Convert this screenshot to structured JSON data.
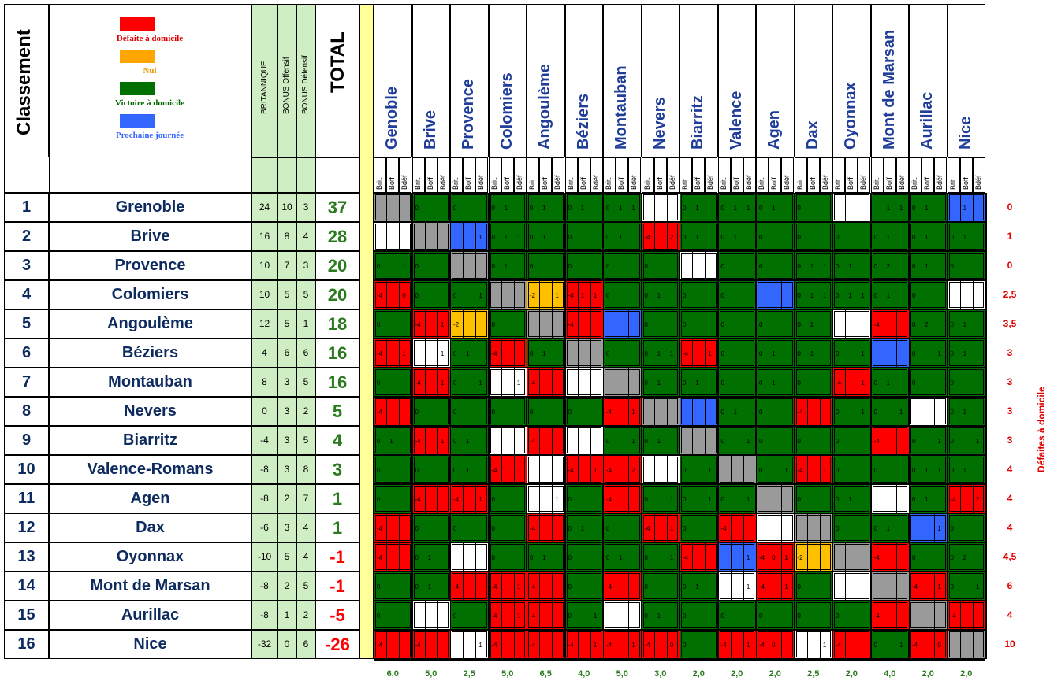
{
  "header": {
    "classement": "Classement",
    "legend": [
      {
        "label": "Défaite à domicile",
        "color": "#ff0000",
        "text_color": "#e00000"
      },
      {
        "label": "Nul",
        "color": "#ffa500",
        "text_color": "#e69500"
      },
      {
        "label": "Victoire à domicile",
        "color": "#007000",
        "text_color": "#006a00"
      },
      {
        "label": "Prochaine journée",
        "color": "#3366ff",
        "text_color": "#3366ff"
      }
    ],
    "col_britannique": "BRITANNIQUE",
    "col_bonus_off": "BONUS Offensif",
    "col_bonus_def": "BONUS Défensif",
    "col_total": "TOTAL",
    "sub_headers": [
      "Brit.",
      "Boff",
      "Bdéf"
    ],
    "side_label": "Défaites à domicile"
  },
  "colors": {
    "R": "#ff0000",
    "G": "#007000",
    "W": "#ffffff",
    "S": "#9a9a9a",
    "B": "#3366ff",
    "O": "#ffc000"
  },
  "teams": [
    {
      "rank": "1",
      "name": "Grenoble",
      "brit": "24",
      "boff": "10",
      "bdef": "3",
      "total": "37",
      "home_def": "0",
      "avg": "6,0",
      "col_name": "Genoble"
    },
    {
      "rank": "2",
      "name": "Brive",
      "brit": "16",
      "boff": "8",
      "bdef": "4",
      "total": "28",
      "home_def": "1",
      "avg": "5,0",
      "col_name": "Brive"
    },
    {
      "rank": "3",
      "name": "Provence",
      "brit": "10",
      "boff": "7",
      "bdef": "3",
      "total": "20",
      "home_def": "0",
      "avg": "2,5",
      "col_name": "Provence"
    },
    {
      "rank": "4",
      "name": "Colomiers",
      "brit": "10",
      "boff": "5",
      "bdef": "5",
      "total": "20",
      "home_def": "2,5",
      "avg": "5,0",
      "col_name": "Colomiers"
    },
    {
      "rank": "5",
      "name": "Angoulème",
      "brit": "12",
      "boff": "5",
      "bdef": "1",
      "total": "18",
      "home_def": "3,5",
      "avg": "6,5",
      "col_name": "Angoulème"
    },
    {
      "rank": "6",
      "name": "Béziers",
      "brit": "4",
      "boff": "6",
      "bdef": "6",
      "total": "16",
      "home_def": "3",
      "avg": "4,0",
      "col_name": "Béziers"
    },
    {
      "rank": "7",
      "name": "Montauban",
      "brit": "8",
      "boff": "3",
      "bdef": "5",
      "total": "16",
      "home_def": "3",
      "avg": "5,0",
      "col_name": "Montauban"
    },
    {
      "rank": "8",
      "name": "Nevers",
      "brit": "0",
      "boff": "3",
      "bdef": "2",
      "total": "5",
      "home_def": "3",
      "avg": "3,0",
      "col_name": "Nevers"
    },
    {
      "rank": "9",
      "name": "Biarritz",
      "brit": "-4",
      "boff": "3",
      "bdef": "5",
      "total": "4",
      "home_def": "3",
      "avg": "2,0",
      "col_name": "Biarritz"
    },
    {
      "rank": "10",
      "name": "Valence-Romans",
      "brit": "-8",
      "boff": "3",
      "bdef": "8",
      "total": "3",
      "home_def": "4",
      "avg": "2,0",
      "col_name": "Valence"
    },
    {
      "rank": "11",
      "name": "Agen",
      "brit": "-8",
      "boff": "2",
      "bdef": "7",
      "total": "1",
      "home_def": "4",
      "avg": "2,0",
      "col_name": "Agen"
    },
    {
      "rank": "12",
      "name": "Dax",
      "brit": "-6",
      "boff": "3",
      "bdef": "4",
      "total": "1",
      "home_def": "4",
      "avg": "2,5",
      "col_name": "Dax"
    },
    {
      "rank": "13",
      "name": "Oyonnax",
      "brit": "-10",
      "boff": "5",
      "bdef": "4",
      "total": "-1",
      "home_def": "4,5",
      "avg": "2,0",
      "col_name": "Oyonnax"
    },
    {
      "rank": "14",
      "name": "Mont de Marsan",
      "brit": "-8",
      "boff": "2",
      "bdef": "5",
      "total": "-1",
      "home_def": "6",
      "avg": "4,0",
      "col_name": "Mont de Marsan"
    },
    {
      "rank": "15",
      "name": "Aurillac",
      "brit": "-8",
      "boff": "1",
      "bdef": "2",
      "total": "-5",
      "home_def": "4",
      "avg": "2,0",
      "col_name": "Aurillac"
    },
    {
      "rank": "16",
      "name": "Nice",
      "brit": "-32",
      "boff": "0",
      "bdef": "6",
      "total": "-26",
      "home_def": "10",
      "avg": "2,0",
      "col_name": "Nice"
    }
  ],
  "grid": [
    [
      "SSS|||",
      "G|0||",
      "G|0||",
      "G|0|1|",
      "G|0|1|",
      "G|0|1|",
      "G|0|1|1",
      "WWW|||",
      "G|0|1|",
      "G|0|1|1",
      "G|0|1|",
      "G|0||",
      "WWW|||",
      "G||1|1",
      "G|0|1|",
      "BBB||1|"
    ],
    [
      "WWW|||",
      "SSS|||",
      "BBB|||1",
      "G|0|1|1",
      "G|0|1|",
      "G|0||",
      "G|0|1|",
      "RRR|-4||2",
      "G|0|1|",
      "G|0|1|",
      "G|0||",
      "G|0||",
      "G|0||",
      "G|0|1|",
      "G|0|1|",
      "G|0|1|"
    ],
    [
      "G|0||1",
      "G|0||",
      "SSS|||",
      "G|0|1|",
      "G|0||",
      "G|0||",
      "G|0||",
      "G|0||",
      "WWW|||",
      "G|0||",
      "G|0||",
      "G|0|1|1",
      "G|0|1|",
      "G|0|2|",
      "G|0|1|",
      "G|0||"
    ],
    [
      "RRR|-4||0",
      "G|0||",
      "G|0||1",
      "SSS|||",
      "OOO|-2||1",
      "RRR|-4|1|1",
      "G|0||",
      "G|0|1|",
      "G|0||",
      "G|0||",
      "BBB|||",
      "G|0|1|1",
      "G|0|1|1",
      "G|0|1|",
      "G|0||",
      "WWW|||"
    ],
    [
      "G|0||",
      "RRR|-4||1",
      "OOO|-2||",
      "G|0||",
      "SSS|||",
      "RRR|-4||",
      "BBB|||",
      "G|0||",
      "G|0||",
      "G|0||",
      "G|0||",
      "G|0|1|",
      "WWW|||",
      "RRR|-4||",
      "G|0|2|",
      "G|0|1|"
    ],
    [
      "RRR|-4||1",
      "WWW|||1",
      "G|0|1|",
      "RRR|-4||",
      "G|0|1|",
      "SSS|||",
      "G|0||",
      "G|0|1|1",
      "RRR|-4||1",
      "G|0||",
      "G|0|1|",
      "G|0|1|",
      "G|0||1",
      "BBB|||",
      "G|0||1",
      "G|0|1|"
    ],
    [
      "G|0||",
      "RRR|-4||1",
      "G|0||1",
      "WWW|||1",
      "RRR|-4||",
      "WWW|||",
      "SSS|||",
      "G|0|1|",
      "G|0|1|",
      "G|0||",
      "G|0|1|",
      "G|0||",
      "RRR|-4||1",
      "G|0|1|",
      "G|0||",
      "G|0||"
    ],
    [
      "RRR|-4||",
      "G|0||",
      "G|0||",
      "G|0||",
      "G|0||",
      "G|0||",
      "RRR|-4||1",
      "SSS|||",
      "BBB|||",
      "G|0|1|",
      "G|0||",
      "RRR|-4||",
      "G|0||1",
      "G|0||1",
      "WWW|||",
      "G|0|1|"
    ],
    [
      "G|0|1|",
      "RRR|-4||1",
      "G|0|1|",
      "WWW|||",
      "RRR|-4||",
      "WWW|||",
      "G|0||1",
      "G|0|1|",
      "SSS|||",
      "G|0||1",
      "G|0||",
      "G|0||",
      "G|0||",
      "RRR|-4||",
      "G|0||1",
      "G|0||1"
    ],
    [
      "G|0||",
      "G|0||",
      "G|0|1|",
      "RRR|-4||1",
      "WWW|||",
      "RRR|-4||1",
      "RRR|-4||2",
      "WWW|||",
      "G|0||1",
      "SSS|||",
      "G|0||1",
      "RRR|-4||1",
      "G|0||",
      "G|0||",
      "G|0|1|1",
      "G|0|1|"
    ],
    [
      "G|0||",
      "RRR|-4||",
      "RRR|-4||1",
      "G|0||",
      "WWW|||1",
      "G|0||",
      "RRR|-4||",
      "G|0||1",
      "G|0||1",
      "G|0||1",
      "SSS|||",
      "G|0||",
      "G|0|1|",
      "WWW|||",
      "G|0|1|",
      "RRR|-4||2"
    ],
    [
      "RRR|-4||",
      "G|0||",
      "G|0||",
      "G|0||",
      "RRR|-4||",
      "G|0|1|",
      "G|0||",
      "RRR|-4||1",
      "G|0||",
      "RRR|-4||",
      "WWW|||",
      "SSS|||",
      "G|0||",
      "G|0|1|",
      "BBB|||1",
      "G|0||"
    ],
    [
      "RRR|-4||",
      "G|0|1|",
      "WWW|||",
      "G|0||",
      "G|0|1|",
      "G|0||",
      "G|0|1|",
      "G|0||1",
      "RRR|-4||",
      "BBB|||1",
      "RRR|-4|0|1",
      "OOO|-2||",
      "SSS|||",
      "RRR|-4||",
      "G|0||",
      "G|0|2|"
    ],
    [
      "G|0||",
      "G|0|1|",
      "RRR|-4||",
      "RRR|-4||1",
      "RRR|-4||",
      "G|0||",
      "RRR|-4||",
      "G|0||",
      "G|0|1|",
      "WWW|||1",
      "RRR|-4||1",
      "G|0||",
      "WWW|||",
      "SSS|||",
      "RRR|-4||1",
      "G|0||1"
    ],
    [
      "G|0||",
      "WWW|||",
      "G|0||",
      "RRR|-4||1",
      "RRR|-4||",
      "G|0||1",
      "WWW|||",
      "G|0|1|",
      "G|0||",
      "G|0||",
      "G|0||",
      "G|0||",
      "G|0||",
      "RRR|-4||",
      "SSS|||",
      "RRR|-4||"
    ],
    [
      "RRR|-4||",
      "RRR|-4||",
      "WWW|||1",
      "RRR|-4||",
      "RRR|-4||",
      "RRR|-4||1",
      "RRR|-4||1",
      "RRR|-4||0",
      "G|0||",
      "RRR|-4||1",
      "RRR|-4|0|",
      "WWW|||1",
      "RRR|-4||",
      "G|0||1",
      "RRR|-4||0",
      "SSS|||"
    ]
  ]
}
